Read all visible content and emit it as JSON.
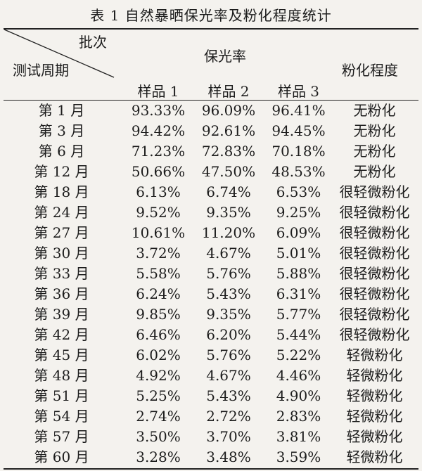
{
  "caption": "表 1 自然暴晒保光率及粉化程度统计",
  "header": {
    "corner_top": "批次",
    "corner_bottom": "测试周期",
    "gloss_group": "保光率",
    "samples": [
      "样品 1",
      "样品 2",
      "样品 3"
    ],
    "chalking": "粉化程度"
  },
  "rows": [
    {
      "period": "第 1 月",
      "s1": "93.33%",
      "s2": "96.09%",
      "s3": "96.41%",
      "level": "无粉化"
    },
    {
      "period": "第 3 月",
      "s1": "94.42%",
      "s2": "92.61%",
      "s3": "94.45%",
      "level": "无粉化"
    },
    {
      "period": "第 6 月",
      "s1": "71.23%",
      "s2": "72.83%",
      "s3": "70.18%",
      "level": "无粉化"
    },
    {
      "period": "第 12 月",
      "s1": "50.66%",
      "s2": "47.50%",
      "s3": "48.53%",
      "level": "无粉化"
    },
    {
      "period": "第 18 月",
      "s1": "6.13%",
      "s2": "6.74%",
      "s3": "6.53%",
      "level": "很轻微粉化"
    },
    {
      "period": "第 24 月",
      "s1": "9.52%",
      "s2": "9.35%",
      "s3": "9.25%",
      "level": "很轻微粉化"
    },
    {
      "period": "第 27 月",
      "s1": "10.61%",
      "s2": "11.20%",
      "s3": "6.09%",
      "level": "很轻微粉化"
    },
    {
      "period": "第 30 月",
      "s1": "3.72%",
      "s2": "4.67%",
      "s3": "5.01%",
      "level": "很轻微粉化"
    },
    {
      "period": "第 33 月",
      "s1": "5.58%",
      "s2": "5.76%",
      "s3": "5.88%",
      "level": "很轻微粉化"
    },
    {
      "period": "第 36 月",
      "s1": "6.24%",
      "s2": "5.43%",
      "s3": "6.31%",
      "level": "很轻微粉化"
    },
    {
      "period": "第 39 月",
      "s1": "9.85%",
      "s2": "9.35%",
      "s3": "5.77%",
      "level": "很轻微粉化"
    },
    {
      "period": "第 42 月",
      "s1": "6.46%",
      "s2": "6.20%",
      "s3": "5.44%",
      "level": "很轻微粉化"
    },
    {
      "period": "第 45 月",
      "s1": "6.02%",
      "s2": "5.76%",
      "s3": "5.22%",
      "level": "轻微粉化"
    },
    {
      "period": "第 48 月",
      "s1": "4.92%",
      "s2": "4.67%",
      "s3": "4.46%",
      "level": "轻微粉化"
    },
    {
      "period": "第 51 月",
      "s1": "5.25%",
      "s2": "5.43%",
      "s3": "4.90%",
      "level": "轻微粉化"
    },
    {
      "period": "第 54 月",
      "s1": "2.74%",
      "s2": "2.72%",
      "s3": "2.83%",
      "level": "轻微粉化"
    },
    {
      "period": "第 57 月",
      "s1": "3.50%",
      "s2": "3.70%",
      "s3": "3.81%",
      "level": "轻微粉化"
    },
    {
      "period": "第 60 月",
      "s1": "3.28%",
      "s2": "3.48%",
      "s3": "3.59%",
      "level": "轻微粉化"
    }
  ]
}
